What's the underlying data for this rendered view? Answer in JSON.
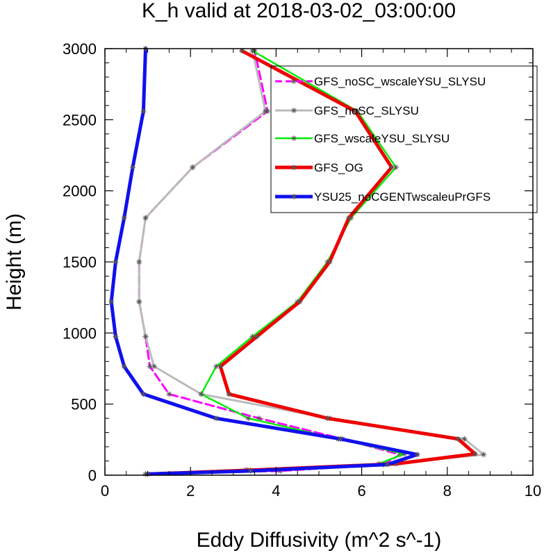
{
  "chart_data": {
    "type": "line",
    "title": "K_h valid at 2018-03-02_03:00:00",
    "xlabel": "Eddy Diffusivity (m^2 s^-1)",
    "ylabel": "Height (m)",
    "xlim": [
      0,
      10
    ],
    "ylim": [
      0,
      3000
    ],
    "x_ticks": [
      "0",
      "2",
      "4",
      "6",
      "8",
      "10"
    ],
    "y_ticks": [
      "0",
      "500",
      "1000",
      "1500",
      "2000",
      "2500",
      "3000"
    ],
    "grid": false,
    "legend_position": "top-right",
    "series": [
      {
        "name": "GFS_noSC_wscaleYSU_SLYSU",
        "color": "#ff00ff",
        "style": "dashed",
        "points": [
          [
            0.95,
            8
          ],
          [
            4.1,
            30
          ],
          [
            6.5,
            75
          ],
          [
            6.9,
            145
          ],
          [
            5.55,
            255
          ],
          [
            3.6,
            400
          ],
          [
            1.5,
            570
          ],
          [
            1.05,
            765
          ],
          [
            0.95,
            975
          ],
          [
            0.8,
            1220
          ],
          [
            0.8,
            1500
          ],
          [
            0.95,
            1810
          ],
          [
            2.05,
            2165
          ],
          [
            3.8,
            2560
          ],
          [
            3.5,
            2985
          ]
        ]
      },
      {
        "name": "GFS_noSC_SLYSU",
        "color": "#bbbbbb",
        "style": "solid",
        "points": [
          [
            0.95,
            8
          ],
          [
            3.3,
            38
          ],
          [
            6.5,
            75
          ],
          [
            8.85,
            145
          ],
          [
            8.4,
            255
          ],
          [
            5.25,
            400
          ],
          [
            2.25,
            570
          ],
          [
            1.15,
            765
          ],
          [
            0.95,
            975
          ],
          [
            0.8,
            1220
          ],
          [
            0.8,
            1500
          ],
          [
            0.95,
            1810
          ],
          [
            2.05,
            2165
          ],
          [
            3.75,
            2560
          ],
          [
            3.45,
            2985
          ]
        ]
      },
      {
        "name": "GFS_wscaleYSU_SLYSU",
        "color": "#00ee00",
        "style": "solid",
        "points": [
          [
            1.0,
            8
          ],
          [
            3.4,
            35
          ],
          [
            6.4,
            80
          ],
          [
            7.0,
            150
          ],
          [
            5.45,
            255
          ],
          [
            3.35,
            400
          ],
          [
            2.25,
            570
          ],
          [
            2.6,
            765
          ],
          [
            3.45,
            975
          ],
          [
            4.5,
            1220
          ],
          [
            5.2,
            1500
          ],
          [
            5.75,
            1810
          ],
          [
            6.8,
            2165
          ],
          [
            5.9,
            2560
          ],
          [
            3.45,
            2985
          ]
        ]
      },
      {
        "name": "GFS_OG",
        "color": "#ee0000",
        "style": "solid",
        "points": [
          [
            1.0,
            8
          ],
          [
            3.4,
            35
          ],
          [
            6.8,
            80
          ],
          [
            8.65,
            150
          ],
          [
            8.25,
            255
          ],
          [
            5.2,
            400
          ],
          [
            2.9,
            570
          ],
          [
            2.7,
            765
          ],
          [
            3.55,
            975
          ],
          [
            4.55,
            1220
          ],
          [
            5.25,
            1500
          ],
          [
            5.7,
            1810
          ],
          [
            6.7,
            2165
          ],
          [
            5.85,
            2560
          ],
          [
            3.2,
            2985
          ]
        ]
      },
      {
        "name": "YSU25_noCGENTwscaleuPrGFS",
        "color": "#1010ee",
        "style": "solid",
        "points": [
          [
            1.0,
            8
          ],
          [
            3.4,
            30
          ],
          [
            6.6,
            75
          ],
          [
            7.3,
            145
          ],
          [
            5.5,
            255
          ],
          [
            2.6,
            400
          ],
          [
            0.9,
            570
          ],
          [
            0.45,
            765
          ],
          [
            0.25,
            975
          ],
          [
            0.15,
            1220
          ],
          [
            0.25,
            1500
          ],
          [
            0.45,
            1810
          ],
          [
            0.65,
            2165
          ],
          [
            0.9,
            2560
          ],
          [
            0.95,
            3000
          ]
        ]
      }
    ]
  }
}
